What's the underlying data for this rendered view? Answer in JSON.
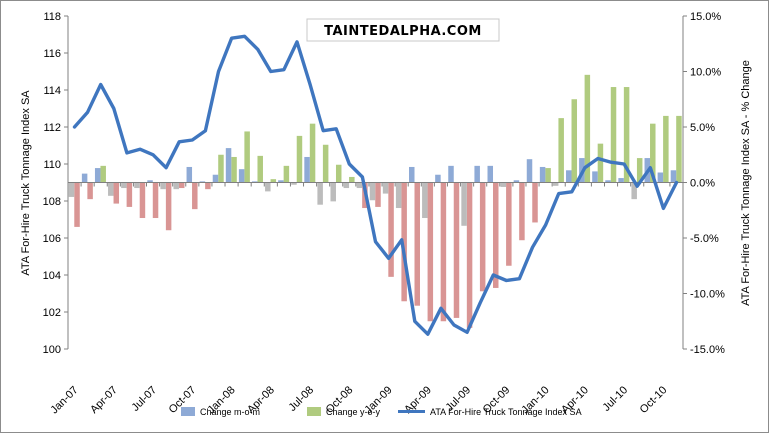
{
  "chart_data": {
    "type": "bar",
    "title": "",
    "watermark": "TAINTEDALPHA.COM",
    "ylabel_left": "ATA For-Hire Truck Tonnage Index SA",
    "ylabel_right": "ATA For-Hire Truck Tonnage Index SA - % Change",
    "ylim_left": [
      100,
      118
    ],
    "ylim_right": [
      -15,
      15
    ],
    "left_ticks": [
      "100",
      "102",
      "104",
      "106",
      "108",
      "110",
      "112",
      "114",
      "116",
      "118"
    ],
    "right_ticks": [
      "-15.0%",
      "-10.0%",
      "-5.0%",
      "0.0%",
      "5.0%",
      "10.0%",
      "15.0%"
    ],
    "x_tick_labels": [
      "Jan-07",
      "Apr-07",
      "Jul-07",
      "Oct-07",
      "Jan-08",
      "Apr-08",
      "Jul-08",
      "Oct-08",
      "Jan-09",
      "Apr-09",
      "Jul-09",
      "Oct-09",
      "Jan-10",
      "Apr-10",
      "Jul-10",
      "Oct-10"
    ],
    "categories": [
      "Jan-07",
      "Feb-07",
      "Mar-07",
      "Apr-07",
      "May-07",
      "Jun-07",
      "Jul-07",
      "Aug-07",
      "Sep-07",
      "Oct-07",
      "Nov-07",
      "Dec-07",
      "Jan-08",
      "Feb-08",
      "Mar-08",
      "Apr-08",
      "May-08",
      "Jun-08",
      "Jul-08",
      "Aug-08",
      "Sep-08",
      "Oct-08",
      "Nov-08",
      "Dec-08",
      "Jan-09",
      "Feb-09",
      "Mar-09",
      "Apr-09",
      "May-09",
      "Jun-09",
      "Jul-09",
      "Aug-09",
      "Sep-09",
      "Oct-09",
      "Nov-09",
      "Dec-09",
      "Jan-10",
      "Feb-10",
      "Mar-10",
      "Apr-10",
      "May-10",
      "Jun-10",
      "Jul-10",
      "Aug-10",
      "Sep-10",
      "Oct-10",
      "Nov-10"
    ],
    "series": [
      {
        "name": "Change m-o-m",
        "kind": "bar",
        "axis": "right",
        "color_pos": "#8eaad6",
        "color_neg": "#bcbcbc",
        "values": [
          -1.3,
          0.8,
          1.3,
          -1.2,
          -0.5,
          -0.5,
          0.2,
          -0.6,
          -0.6,
          1.4,
          0.1,
          0.7,
          3.1,
          1.2,
          0.1,
          -0.8,
          0.2,
          -0.2,
          2.3,
          -2.0,
          -1.7,
          -0.5,
          -0.5,
          -1.6,
          -1.0,
          -2.3,
          1.4,
          -3.2,
          0.7,
          1.5,
          -3.9,
          1.5,
          1.5,
          -0.4,
          0.2,
          2.1,
          1.4,
          -0.3,
          1.1,
          2.2,
          1.0,
          0.2,
          0.4,
          -1.5,
          2.2,
          0.9,
          1.1
        ]
      },
      {
        "name": "Change y-o-y",
        "kind": "bar",
        "axis": "right",
        "color_pos": "#b0cb7f",
        "color_neg": "#d99594",
        "values": [
          -4.0,
          -1.5,
          1.5,
          -1.9,
          -2.2,
          -3.2,
          -3.2,
          -4.3,
          -0.5,
          -2.4,
          -0.6,
          2.5,
          2.3,
          4.6,
          2.4,
          0.3,
          1.5,
          4.2,
          5.3,
          3.4,
          1.6,
          0.5,
          -2.3,
          -2.2,
          -8.5,
          -10.7,
          -11.1,
          -12.5,
          -12.5,
          -12.2,
          -13.1,
          -9.8,
          -9.5,
          -7.5,
          -5.2,
          -3.6,
          1.3,
          5.8,
          7.5,
          9.7,
          3.5,
          8.6,
          8.6,
          2.2,
          5.3,
          6.0,
          6.0
        ]
      },
      {
        "name": "ATA For-Hire Truck Tonnage Index SA",
        "kind": "line",
        "axis": "left",
        "color": "#3f76bf",
        "values": [
          112.0,
          112.8,
          114.3,
          113.0,
          110.6,
          110.8,
          110.5,
          109.8,
          111.2,
          111.3,
          111.8,
          115.0,
          116.8,
          116.9,
          116.2,
          115.0,
          115.1,
          116.6,
          114.3,
          111.8,
          111.9,
          110.0,
          109.3,
          105.8,
          104.9,
          105.9,
          101.5,
          100.8,
          102.2,
          101.3,
          100.9,
          102.5,
          104.0,
          103.7,
          103.8,
          105.5,
          106.7,
          108.4,
          108.5,
          109.8,
          110.3,
          110.1,
          110.0,
          108.8,
          109.8,
          107.6,
          109.0
        ]
      }
    ],
    "legend_position": "bottom-center"
  }
}
